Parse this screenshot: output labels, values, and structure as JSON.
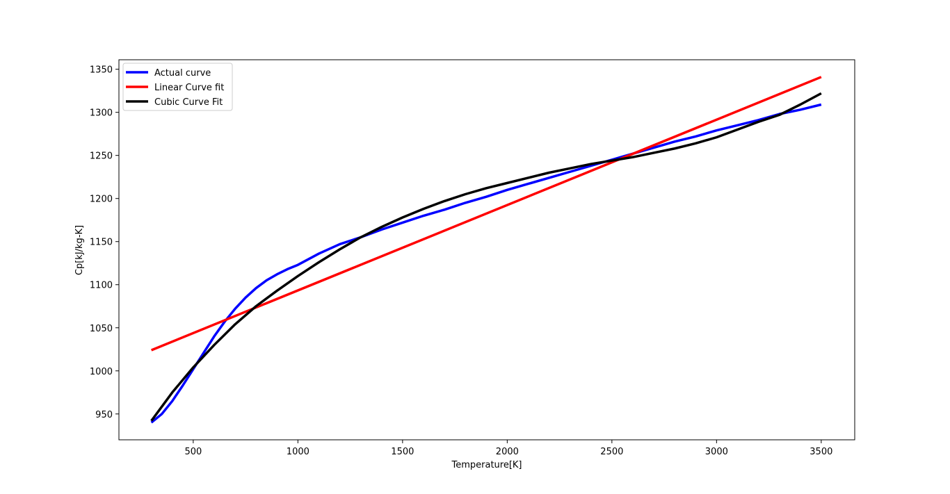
{
  "chart_data": {
    "type": "line",
    "title": "",
    "xlabel": "Temperature[K]",
    "ylabel": "Cp[kJ/kg-K]",
    "xlim": [
      145,
      3660
    ],
    "ylim": [
      920,
      1361
    ],
    "x_ticks": [
      500,
      1000,
      1500,
      2000,
      2500,
      3000,
      3500
    ],
    "y_ticks": [
      950,
      1000,
      1050,
      1100,
      1150,
      1200,
      1250,
      1300,
      1350
    ],
    "legend_position": "top-left",
    "grid": false,
    "series": [
      {
        "name": "Actual curve",
        "color": "#0000ff",
        "x": [
          300,
          350,
          400,
          450,
          500,
          550,
          600,
          650,
          700,
          750,
          800,
          850,
          900,
          950,
          1000,
          1100,
          1200,
          1300,
          1400,
          1500,
          1600,
          1700,
          1800,
          1900,
          2000,
          2100,
          2200,
          2300,
          2400,
          2500,
          2600,
          2700,
          2800,
          2900,
          3000,
          3100,
          3200,
          3300,
          3400,
          3500
        ],
        "y": [
          940,
          950,
          965,
          983,
          1002,
          1021,
          1040,
          1057,
          1072,
          1085,
          1096,
          1105,
          1112,
          1118,
          1123,
          1136,
          1147,
          1155,
          1164,
          1172,
          1180,
          1187,
          1195,
          1202,
          1210,
          1217,
          1224,
          1231,
          1238,
          1245,
          1252,
          1259,
          1266,
          1272,
          1279,
          1285,
          1291,
          1298,
          1303,
          1309
        ]
      },
      {
        "name": "Linear Curve fit",
        "color": "#ff0000",
        "x": [
          300,
          3500
        ],
        "y": [
          1024,
          1341
        ]
      },
      {
        "name": "Cubic Curve Fit",
        "color": "#000000",
        "x": [
          300,
          400,
          500,
          600,
          700,
          800,
          900,
          1000,
          1100,
          1200,
          1300,
          1400,
          1500,
          1600,
          1700,
          1800,
          1900,
          2000,
          2100,
          2200,
          2300,
          2400,
          2500,
          2600,
          2700,
          2800,
          2900,
          3000,
          3100,
          3200,
          3300,
          3400,
          3500
        ],
        "y": [
          942,
          975,
          1004,
          1030,
          1054,
          1075,
          1093,
          1110,
          1126,
          1141,
          1155,
          1167,
          1178,
          1188,
          1197,
          1205,
          1212,
          1218,
          1224,
          1230,
          1235,
          1240,
          1244,
          1248,
          1253,
          1258,
          1264,
          1271,
          1280,
          1289,
          1297,
          1309,
          1322
        ]
      }
    ]
  }
}
